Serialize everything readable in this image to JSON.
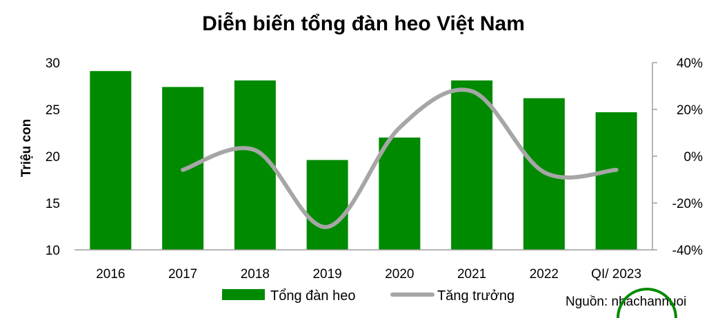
{
  "chart_data": {
    "type": "bar",
    "title": "Diễn biến tổng đàn heo Việt Nam",
    "ylabel": "Triệu con",
    "categories": [
      "2016",
      "2017",
      "2018",
      "2019",
      "2020",
      "2021",
      "2022",
      "QI/ 2023"
    ],
    "ylim": [
      10,
      30
    ],
    "yticks": [
      "10",
      "15",
      "20",
      "25",
      "30"
    ],
    "y2lim": [
      -40,
      40
    ],
    "y2ticks": [
      "-40%",
      "-20%",
      "0%",
      "20%",
      "40%"
    ],
    "grid": false,
    "legend_position": "bottom",
    "series": [
      {
        "name": "Tổng đàn heo",
        "type": "bar",
        "axis": "left",
        "color": "#008a00",
        "values": [
          29.1,
          27.4,
          28.1,
          19.6,
          22.0,
          28.1,
          26.2,
          24.7
        ]
      },
      {
        "name": "Tăng trưởng",
        "type": "line",
        "axis": "right",
        "color": "#a6a6a6",
        "smooth": true,
        "values": [
          null,
          -5.8,
          2.6,
          -30.2,
          12.2,
          27.8,
          -6.8,
          -5.8
        ]
      }
    ],
    "source": "Nguồn: nhachannuoi"
  }
}
